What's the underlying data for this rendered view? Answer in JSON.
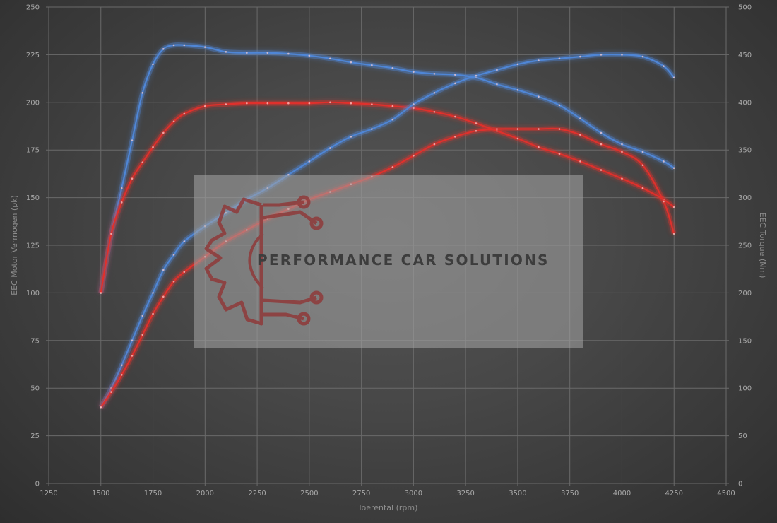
{
  "chart_data": {
    "type": "line",
    "xlabel": "Toerental (rpm)",
    "ylabel_left": "EEC Motor Vermogen (pk)",
    "ylabel_right": "EEC Torque (Nm)",
    "xlim": [
      1250,
      4500
    ],
    "ylim_left": [
      0,
      250
    ],
    "ylim_right": [
      0,
      500
    ],
    "x_ticks": [
      1250,
      1500,
      1750,
      2000,
      2250,
      2500,
      2750,
      3000,
      3250,
      3500,
      3750,
      4000,
      4250,
      4500
    ],
    "y_left_ticks": [
      0,
      25,
      50,
      75,
      100,
      125,
      150,
      175,
      200,
      225,
      250
    ],
    "y_right_ticks": [
      0,
      50,
      100,
      150,
      200,
      250,
      300,
      350,
      400,
      450,
      500
    ],
    "grid": true,
    "colors": {
      "tuned": "#4f86d6",
      "stock": "#e0302c",
      "grid": "#6a6a6a",
      "watermark_box": "#a6a6a6",
      "watermark_text": "#3d3d3d",
      "logo": "#8f3a3a"
    },
    "series": [
      {
        "axis": "right",
        "color_key": "tuned",
        "x": [
          1500,
          1550,
          1600,
          1650,
          1700,
          1750,
          1800,
          1850,
          1900,
          2000,
          2100,
          2200,
          2300,
          2400,
          2500,
          2600,
          2700,
          2800,
          2900,
          3000,
          3100,
          3200,
          3300,
          3400,
          3500,
          3600,
          3700,
          3800,
          3900,
          4000,
          4100,
          4200,
          4250
        ],
        "values": [
          200,
          262,
          310,
          360,
          410,
          440,
          456,
          460,
          460,
          458,
          453,
          452,
          452,
          451,
          449,
          446,
          442,
          439,
          436,
          432,
          430,
          429,
          426,
          419,
          413,
          406,
          397,
          383,
          368,
          356,
          348,
          338,
          331
        ]
      },
      {
        "axis": "right",
        "color_key": "stock",
        "x": [
          1500,
          1550,
          1600,
          1650,
          1700,
          1750,
          1800,
          1850,
          1900,
          2000,
          2100,
          2200,
          2300,
          2400,
          2500,
          2600,
          2700,
          2800,
          2900,
          3000,
          3100,
          3200,
          3300,
          3400,
          3500,
          3600,
          3700,
          3800,
          3900,
          4000,
          4100,
          4200,
          4250
        ],
        "values": [
          200,
          262,
          295,
          320,
          337,
          353,
          368,
          380,
          388,
          396,
          398,
          399,
          399,
          399,
          399,
          400,
          399,
          398,
          396,
          394,
          390,
          385,
          378,
          370,
          362,
          353,
          346,
          338,
          329,
          320,
          310,
          298,
          290
        ]
      },
      {
        "axis": "left",
        "color_key": "tuned",
        "x": [
          1500,
          1550,
          1600,
          1650,
          1700,
          1750,
          1800,
          1850,
          1900,
          2000,
          2100,
          2200,
          2300,
          2400,
          2500,
          2600,
          2700,
          2800,
          2900,
          3000,
          3100,
          3200,
          3300,
          3400,
          3500,
          3600,
          3700,
          3800,
          3900,
          4000,
          4100,
          4200,
          4250
        ],
        "values": [
          40,
          50,
          62,
          75,
          88,
          100,
          112,
          120,
          127,
          135,
          142,
          149,
          155,
          162,
          169,
          176,
          182,
          186,
          191,
          199,
          205,
          210,
          214,
          217,
          220,
          222,
          223,
          224,
          225,
          225,
          224,
          219,
          213
        ]
      },
      {
        "axis": "left",
        "color_key": "stock",
        "x": [
          1500,
          1550,
          1600,
          1650,
          1700,
          1750,
          1800,
          1850,
          1900,
          2000,
          2100,
          2200,
          2300,
          2400,
          2500,
          2600,
          2700,
          2800,
          2900,
          3000,
          3100,
          3200,
          3300,
          3400,
          3500,
          3600,
          3700,
          3800,
          3900,
          4000,
          4100,
          4200,
          4250
        ],
        "values": [
          40,
          48,
          57,
          67,
          78,
          89,
          98,
          106,
          111,
          119,
          127,
          133,
          139,
          144,
          149,
          153,
          157,
          161,
          166,
          172,
          178,
          182,
          185,
          186,
          186,
          186,
          186,
          183,
          178,
          174,
          167,
          148,
          131
        ]
      }
    ]
  },
  "watermark": {
    "text": "PERFORMANCE CAR SOLUTIONS",
    "logo_icon": "gear-circuit-logo-icon"
  }
}
